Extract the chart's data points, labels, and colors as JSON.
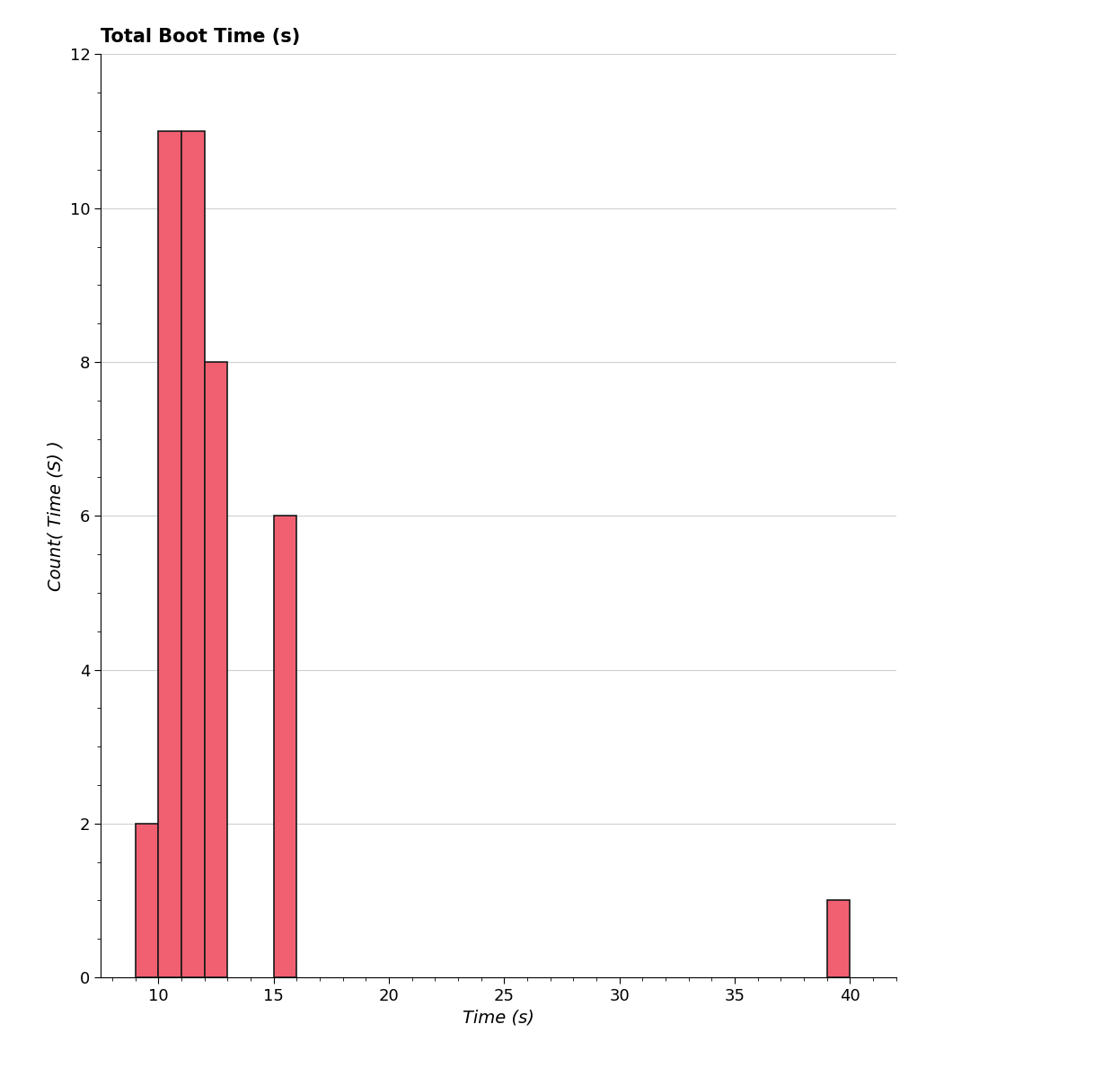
{
  "title": "Total Boot Time (s)",
  "xlabel": "Time (s)",
  "ylabel": "Count( Time (S) )",
  "bar_color": "#F06070",
  "bar_edgecolor": "#1a1a1a",
  "bar_linewidth": 1.2,
  "xlim": [
    7.5,
    42
  ],
  "ylim": [
    0,
    12
  ],
  "yticks": [
    0,
    2,
    4,
    6,
    8,
    10,
    12
  ],
  "xticks": [
    10,
    15,
    20,
    25,
    30,
    35,
    40
  ],
  "grid_color": "#d0d0d0",
  "background_color": "#ffffff",
  "bins": [
    9,
    10,
    11,
    12,
    13,
    14,
    15,
    16,
    39,
    40
  ],
  "counts": [
    2,
    11,
    11,
    8,
    0,
    0,
    6,
    0,
    1
  ],
  "title_fontsize": 15,
  "axis_label_fontsize": 14,
  "tick_fontsize": 13
}
